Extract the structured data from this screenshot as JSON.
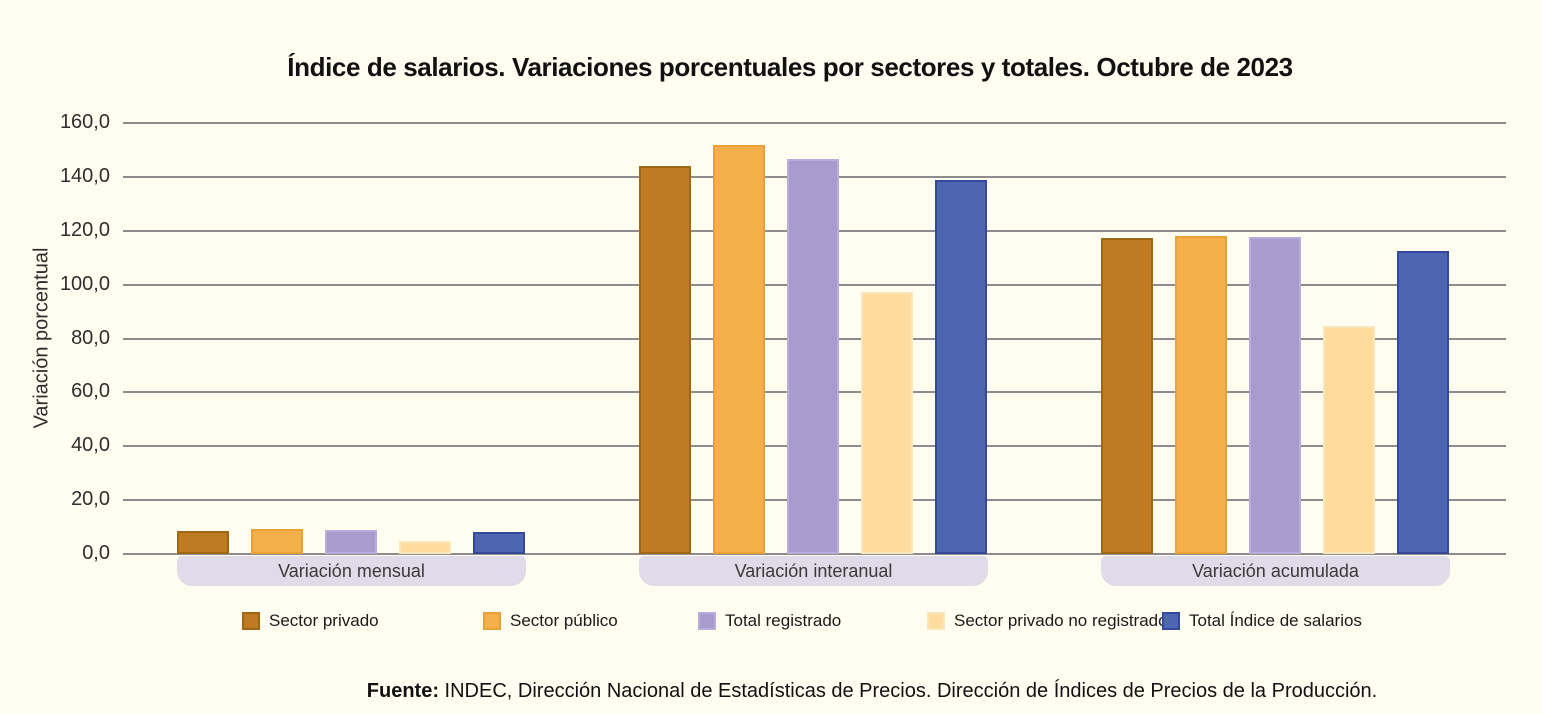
{
  "title": "Índice de salarios. Variaciones porcentuales por sectores y totales. Octubre de 2023",
  "y_axis": {
    "label": "Variación porcentual",
    "ticks": [
      {
        "value": 160,
        "label": "160,0"
      },
      {
        "value": 140,
        "label": "140,0"
      },
      {
        "value": 120,
        "label": "120,0"
      },
      {
        "value": 100,
        "label": "100,0"
      },
      {
        "value": 80,
        "label": "80,0"
      },
      {
        "value": 60,
        "label": "60,0"
      },
      {
        "value": 40,
        "label": "40,0"
      },
      {
        "value": 20,
        "label": "20,0"
      },
      {
        "value": 0,
        "label": "0,0"
      }
    ]
  },
  "chart_data": {
    "type": "bar",
    "title": "Índice de salarios. Variaciones porcentuales por sectores y totales. Octubre de 2023",
    "categories": [
      "Variación mensual",
      "Variación interanual",
      "Variación acumulada"
    ],
    "series": [
      {
        "name": "Sector privado",
        "color": "#BE7B21",
        "border": "#A06815",
        "values": [
          8.7,
          144.0,
          117.3
        ]
      },
      {
        "name": "Sector público",
        "color": "#F5AF4D",
        "border": "#E8A037",
        "values": [
          9.2,
          152.0,
          118.1
        ]
      },
      {
        "name": "Total registrado",
        "color": "#A99BCE",
        "border": "#B7ACDA",
        "values": [
          8.8,
          146.8,
          117.5
        ]
      },
      {
        "name": "Sector privado no registrado",
        "color": "#FEDC9B",
        "border": "#F9E6BE",
        "values": [
          4.7,
          97.3,
          84.5
        ]
      },
      {
        "name": "Total Índice de salarios",
        "color": "#4E65B2",
        "border": "#35499B",
        "values": [
          8.3,
          138.7,
          112.5
        ]
      }
    ],
    "xlabel": "",
    "ylabel": "Variación porcentual",
    "ylim": [
      0,
      160
    ],
    "grid": true,
    "legend_position": "bottom"
  },
  "footer": {
    "label": "Fuente:",
    "text": " INDEC, Dirección Nacional de Estadísticas de Precios. Dirección de Índices de Precios de la Producción."
  },
  "colors": {
    "background": "#FFFDF0",
    "gridline": "#8C8C8C",
    "category_pill": "#DFDBE9"
  }
}
